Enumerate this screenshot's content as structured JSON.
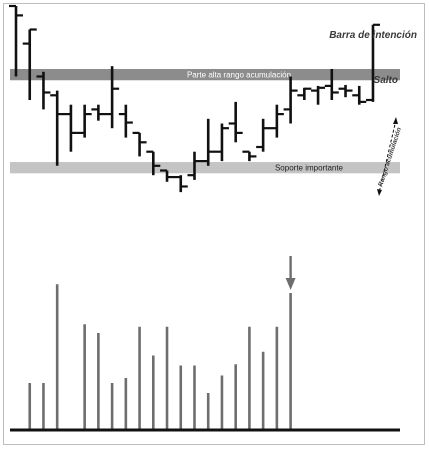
{
  "chart_data": {
    "type": "bar",
    "subtype": "ohlc-price-with-volume",
    "colors": {
      "price_bars": "#111111",
      "volume_bars": "#6e6e6e",
      "upper_band": "#8c8c8c",
      "lower_band": "#c4c4c4",
      "baseline": "#111111",
      "annotation": "#3a3a3a"
    },
    "bands": [
      {
        "label": "Parte alta rango acumulación",
        "from": 17.1,
        "to": 18.3
      },
      {
        "label": "Soporte importante",
        "from": 7.2,
        "to": 8.4
      }
    ],
    "annotations": {
      "intention_bar": "Barra de intención",
      "jump": "Salto",
      "range": "Rango acumulación"
    },
    "price_bars": [
      {
        "high": 25.0,
        "low": 17.5,
        "open": 25.0,
        "close": 24.0
      },
      {
        "high": 22.5,
        "low": 15.0,
        "open": 21.0,
        "close": 22.5
      },
      {
        "high": 18.0,
        "low": 14.0,
        "open": 17.5,
        "close": 15.8
      },
      {
        "high": 16.0,
        "low": 8.0,
        "open": 15.5,
        "close": 13.5
      },
      {
        "high": 14.5,
        "low": 9.5,
        "open": 13.5,
        "close": 11.5
      },
      {
        "high": 14.5,
        "low": 11.0,
        "open": 11.5,
        "close": 13.5
      },
      {
        "high": 14.5,
        "low": 12.8,
        "open": 14.0,
        "close": 13.5
      },
      {
        "high": 18.6,
        "low": 12.0,
        "open": 13.5,
        "close": 16.2
      },
      {
        "high": 14.5,
        "low": 11.0,
        "open": 13.5,
        "close": 12.6
      },
      {
        "high": 11.5,
        "low": 9.0,
        "open": 11.5,
        "close": 10.5
      },
      {
        "high": 9.5,
        "low": 7.0,
        "open": 9.5,
        "close": 8.0
      },
      {
        "high": 7.5,
        "low": 6.3,
        "open": 7.5,
        "close": 6.8
      },
      {
        "high": 7.0,
        "low": 5.2,
        "open": 6.8,
        "close": 5.8
      },
      {
        "high": 9.5,
        "low": 6.5,
        "open": 7.0,
        "close": 8.5
      },
      {
        "high": 13.0,
        "low": 8.0,
        "open": 8.5,
        "close": 9.5
      },
      {
        "high": 12.5,
        "low": 8.5,
        "open": 9.5,
        "close": 12.0
      },
      {
        "high": 14.8,
        "low": 10.5,
        "open": 12.5,
        "close": 11.5
      },
      {
        "high": 9.5,
        "low": 8.5,
        "open": 9.5,
        "close": 9.0
      },
      {
        "high": 13.0,
        "low": 9.5,
        "open": 10.0,
        "close": 12.0
      },
      {
        "high": 14.5,
        "low": 11.0,
        "open": 12.0,
        "close": 13.5
      },
      {
        "high": 17.5,
        "low": 12.5,
        "open": 14.0,
        "close": 16.0
      },
      {
        "high": 16.3,
        "low": 15.0,
        "open": 15.5,
        "close": 16.2
      },
      {
        "high": 16.5,
        "low": 14.5,
        "open": 16.0,
        "close": 16.3
      },
      {
        "high": 18.3,
        "low": 15.0,
        "open": 16.5,
        "close": 15.8
      },
      {
        "high": 16.6,
        "low": 15.3,
        "open": 16.2,
        "close": 16.0
      },
      {
        "high": 16.5,
        "low": 14.5,
        "open": 15.5,
        "close": 14.8
      },
      {
        "high": 23.0,
        "low": 14.8,
        "open": 15.0,
        "close": 23.0
      }
    ],
    "volume": [
      {
        "bar": 1,
        "value": 3.6
      },
      {
        "bar": 2,
        "value": 3.6
      },
      {
        "bar": 3,
        "value": 11.5
      },
      {
        "bar": 5,
        "value": 8.3
      },
      {
        "bar": 6,
        "value": 7.6
      },
      {
        "bar": 7,
        "value": 3.6
      },
      {
        "bar": 8,
        "value": 4.0
      },
      {
        "bar": 9,
        "value": 8.1
      },
      {
        "bar": 10,
        "value": 5.8
      },
      {
        "bar": 11,
        "value": 8.1
      },
      {
        "bar": 12,
        "value": 5.0
      },
      {
        "bar": 13,
        "value": 5.0
      },
      {
        "bar": 14,
        "value": 2.8
      },
      {
        "bar": 15,
        "value": 4.2
      },
      {
        "bar": 16,
        "value": 5.1
      },
      {
        "bar": 17,
        "value": 8.1
      },
      {
        "bar": 18,
        "value": 6.1
      },
      {
        "bar": 19,
        "value": 8.1
      },
      {
        "bar": 20,
        "value": 10.8
      }
    ],
    "volume_arrow_bar": 20,
    "xlabel": "",
    "ylabel": ""
  }
}
